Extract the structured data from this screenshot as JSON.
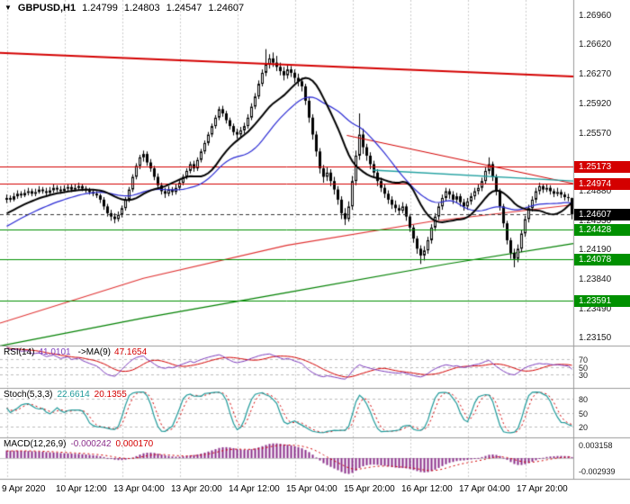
{
  "header": {
    "dropdown_glyph": "▼",
    "symbol_period": "GBPUSD,H1",
    "open": "1.24799",
    "high": "1.24803",
    "low": "1.24547",
    "close": "1.24607"
  },
  "colors": {
    "background": "#ffffff",
    "grid": "#cdcdcd",
    "separator": "#9a9a9a",
    "candle_outline": "#000000",
    "candle_bull": "#ffffff",
    "candle_bear": "#000000",
    "ma_black": "#000000",
    "ma_blue": "#2a2ad4",
    "ma_red_long": "#e03030",
    "ma_green_long": "#008000",
    "level_red": "#d40000",
    "level_green": "#009000",
    "trend_red": "#d40000",
    "teal_line": "#20a0a0",
    "badge_red": "#d40000",
    "badge_green": "#009000",
    "badge_black": "#000000",
    "current_price_line": "#333333",
    "rsi_line": "#7d3cbd",
    "rsi_ma": "#d40000",
    "stoch_k": "#1f9a9a",
    "stoch_d": "#d40000",
    "macd_hist": "#8b2f8b",
    "macd_signal": "#d40000",
    "text": "#1a1a1a"
  },
  "chart_data": {
    "type": "candlestick",
    "title": "GBPUSD,H1",
    "symbol": "GBPUSD",
    "timeframe": "H1",
    "price_range": {
      "min": 1.2315,
      "max": 1.2696
    },
    "candles": [
      [
        1.2478,
        1.2484,
        1.2474,
        1.248
      ],
      [
        1.248,
        1.2483,
        1.2475,
        1.2478
      ],
      [
        1.2478,
        1.2486,
        1.2476,
        1.2482
      ],
      [
        1.2482,
        1.2489,
        1.2479,
        1.2485
      ],
      [
        1.2485,
        1.2488,
        1.248,
        1.2483
      ],
      [
        1.2483,
        1.249,
        1.2481,
        1.2486
      ],
      [
        1.2486,
        1.2492,
        1.2483,
        1.2488
      ],
      [
        1.2488,
        1.2491,
        1.2482,
        1.2485
      ],
      [
        1.2485,
        1.2491,
        1.2482,
        1.2487
      ],
      [
        1.2487,
        1.2494,
        1.2485,
        1.249
      ],
      [
        1.249,
        1.2493,
        1.2485,
        1.2488
      ],
      [
        1.2488,
        1.2492,
        1.2483,
        1.2486
      ],
      [
        1.2486,
        1.2493,
        1.2484,
        1.2489
      ],
      [
        1.2489,
        1.2496,
        1.2486,
        1.2492
      ],
      [
        1.2492,
        1.2495,
        1.2487,
        1.249
      ],
      [
        1.249,
        1.2494,
        1.2485,
        1.2488
      ],
      [
        1.2488,
        1.2495,
        1.2486,
        1.2491
      ],
      [
        1.2491,
        1.2497,
        1.2488,
        1.2493
      ],
      [
        1.2493,
        1.2496,
        1.2487,
        1.249
      ],
      [
        1.249,
        1.2496,
        1.2488,
        1.2492
      ],
      [
        1.2492,
        1.2498,
        1.2489,
        1.2494
      ],
      [
        1.2494,
        1.2497,
        1.2488,
        1.2491
      ],
      [
        1.2491,
        1.2494,
        1.2486,
        1.2489
      ],
      [
        1.2489,
        1.2492,
        1.2484,
        1.2487
      ],
      [
        1.2487,
        1.249,
        1.2482,
        1.2485
      ],
      [
        1.2485,
        1.2488,
        1.248,
        1.2483
      ],
      [
        1.2483,
        1.2485,
        1.2474,
        1.2478
      ],
      [
        1.2478,
        1.2481,
        1.2466,
        1.247
      ],
      [
        1.247,
        1.2473,
        1.2458,
        1.2462
      ],
      [
        1.2462,
        1.2466,
        1.2453,
        1.2458
      ],
      [
        1.2458,
        1.2462,
        1.245,
        1.2455
      ],
      [
        1.2455,
        1.2464,
        1.2452,
        1.246
      ],
      [
        1.246,
        1.2471,
        1.2457,
        1.2468
      ],
      [
        1.2468,
        1.2481,
        1.2465,
        1.2478
      ],
      [
        1.2478,
        1.2493,
        1.2475,
        1.249
      ],
      [
        1.249,
        1.2508,
        1.2487,
        1.2505
      ],
      [
        1.2505,
        1.2521,
        1.2502,
        1.2518
      ],
      [
        1.2518,
        1.2531,
        1.2514,
        1.2528
      ],
      [
        1.2528,
        1.2536,
        1.2523,
        1.2532
      ],
      [
        1.2532,
        1.2535,
        1.2518,
        1.2522
      ],
      [
        1.2522,
        1.2526,
        1.2511,
        1.2515
      ],
      [
        1.2515,
        1.2518,
        1.2501,
        1.2505
      ],
      [
        1.2505,
        1.2509,
        1.2491,
        1.2495
      ],
      [
        1.2495,
        1.2498,
        1.2484,
        1.2488
      ],
      [
        1.2488,
        1.2492,
        1.248,
        1.2485
      ],
      [
        1.2485,
        1.2494,
        1.2482,
        1.249
      ],
      [
        1.249,
        1.2493,
        1.2483,
        1.2487
      ],
      [
        1.2487,
        1.2496,
        1.2484,
        1.2492
      ],
      [
        1.2492,
        1.2501,
        1.2489,
        1.2498
      ],
      [
        1.2498,
        1.2508,
        1.2495,
        1.2505
      ],
      [
        1.2505,
        1.2515,
        1.2502,
        1.2512
      ],
      [
        1.2512,
        1.2523,
        1.2509,
        1.252
      ],
      [
        1.252,
        1.2524,
        1.2511,
        1.2515
      ],
      [
        1.2515,
        1.2528,
        1.2512,
        1.2525
      ],
      [
        1.2525,
        1.2538,
        1.2522,
        1.2535
      ],
      [
        1.2535,
        1.2548,
        1.2532,
        1.2545
      ],
      [
        1.2545,
        1.2558,
        1.2542,
        1.2555
      ],
      [
        1.2555,
        1.2568,
        1.2552,
        1.2565
      ],
      [
        1.2565,
        1.2578,
        1.2562,
        1.2575
      ],
      [
        1.2575,
        1.2588,
        1.2572,
        1.2585
      ],
      [
        1.2585,
        1.2589,
        1.2576,
        1.258
      ],
      [
        1.258,
        1.2583,
        1.2568,
        1.2572
      ],
      [
        1.2572,
        1.2575,
        1.2561,
        1.2565
      ],
      [
        1.2565,
        1.2568,
        1.2554,
        1.2558
      ],
      [
        1.2558,
        1.2562,
        1.255,
        1.2555
      ],
      [
        1.2555,
        1.2564,
        1.2552,
        1.256
      ],
      [
        1.256,
        1.2569,
        1.2556,
        1.2565
      ],
      [
        1.2565,
        1.2579,
        1.2562,
        1.2575
      ],
      [
        1.2575,
        1.2592,
        1.2572,
        1.2588
      ],
      [
        1.2588,
        1.2604,
        1.2585,
        1.26
      ],
      [
        1.26,
        1.2619,
        1.2597,
        1.2615
      ],
      [
        1.2615,
        1.2632,
        1.2612,
        1.2628
      ],
      [
        1.2628,
        1.2656,
        1.2624,
        1.2638
      ],
      [
        1.2638,
        1.265,
        1.2633,
        1.2645
      ],
      [
        1.2645,
        1.2652,
        1.2635,
        1.264
      ],
      [
        1.264,
        1.2648,
        1.263,
        1.2635
      ],
      [
        1.2635,
        1.264,
        1.2625,
        1.263
      ],
      [
        1.263,
        1.2635,
        1.2619,
        1.2625
      ],
      [
        1.2625,
        1.2637,
        1.2621,
        1.2632
      ],
      [
        1.2632,
        1.2636,
        1.2623,
        1.2628
      ],
      [
        1.2628,
        1.2632,
        1.2616,
        1.2622
      ],
      [
        1.2622,
        1.2627,
        1.2612,
        1.2618
      ],
      [
        1.2618,
        1.2622,
        1.2606,
        1.2612
      ],
      [
        1.2612,
        1.2615,
        1.259,
        1.2595
      ],
      [
        1.2595,
        1.2599,
        1.2569,
        1.2575
      ],
      [
        1.2575,
        1.2579,
        1.2549,
        1.2555
      ],
      [
        1.2555,
        1.2559,
        1.2529,
        1.2535
      ],
      [
        1.2535,
        1.2539,
        1.2509,
        1.2515
      ],
      [
        1.2515,
        1.2519,
        1.2498,
        1.2505
      ],
      [
        1.2505,
        1.2516,
        1.25,
        1.251
      ],
      [
        1.251,
        1.2514,
        1.2494,
        1.25
      ],
      [
        1.25,
        1.2505,
        1.2484,
        1.249
      ],
      [
        1.249,
        1.2494,
        1.2472,
        1.2478
      ],
      [
        1.2478,
        1.2482,
        1.2455,
        1.2462
      ],
      [
        1.2462,
        1.2468,
        1.2448,
        1.2455
      ],
      [
        1.2455,
        1.2476,
        1.2452,
        1.247
      ],
      [
        1.247,
        1.2506,
        1.2466,
        1.25
      ],
      [
        1.25,
        1.2536,
        1.2495,
        1.253
      ],
      [
        1.253,
        1.258,
        1.2525,
        1.2555
      ],
      [
        1.2555,
        1.2562,
        1.2532,
        1.254
      ],
      [
        1.254,
        1.2544,
        1.2524,
        1.253
      ],
      [
        1.253,
        1.2534,
        1.2514,
        1.252
      ],
      [
        1.252,
        1.2524,
        1.2504,
        1.251
      ],
      [
        1.251,
        1.2514,
        1.2494,
        1.25
      ],
      [
        1.25,
        1.2504,
        1.2487,
        1.2492
      ],
      [
        1.2492,
        1.2496,
        1.248,
        1.2485
      ],
      [
        1.2485,
        1.2489,
        1.2473,
        1.2478
      ],
      [
        1.2478,
        1.2482,
        1.2467,
        1.2472
      ],
      [
        1.2472,
        1.2477,
        1.2463,
        1.2468
      ],
      [
        1.2468,
        1.2472,
        1.246,
        1.2465
      ],
      [
        1.2465,
        1.2475,
        1.2462,
        1.247
      ],
      [
        1.247,
        1.2473,
        1.2453,
        1.2458
      ],
      [
        1.2458,
        1.2461,
        1.244,
        1.2445
      ],
      [
        1.2445,
        1.2448,
        1.2427,
        1.2432
      ],
      [
        1.2432,
        1.2435,
        1.2414,
        1.242
      ],
      [
        1.242,
        1.2424,
        1.2402,
        1.2412
      ],
      [
        1.2412,
        1.2423,
        1.2406,
        1.2418
      ],
      [
        1.2418,
        1.2434,
        1.2414,
        1.243
      ],
      [
        1.243,
        1.2449,
        1.2426,
        1.2445
      ],
      [
        1.2445,
        1.2462,
        1.2441,
        1.2458
      ],
      [
        1.2458,
        1.2474,
        1.2454,
        1.247
      ],
      [
        1.247,
        1.2484,
        1.2466,
        1.248
      ],
      [
        1.248,
        1.2492,
        1.2476,
        1.2488
      ],
      [
        1.2488,
        1.2491,
        1.2479,
        1.2484
      ],
      [
        1.2484,
        1.2488,
        1.2473,
        1.2478
      ],
      [
        1.2478,
        1.2486,
        1.2474,
        1.2482
      ],
      [
        1.2482,
        1.2485,
        1.247,
        1.2475
      ],
      [
        1.2475,
        1.2479,
        1.2465,
        1.247
      ],
      [
        1.247,
        1.248,
        1.2466,
        1.2476
      ],
      [
        1.2476,
        1.2486,
        1.2472,
        1.2482
      ],
      [
        1.2482,
        1.2492,
        1.2478,
        1.2488
      ],
      [
        1.2488,
        1.2496,
        1.2484,
        1.2492
      ],
      [
        1.2492,
        1.2504,
        1.2488,
        1.25
      ],
      [
        1.25,
        1.2516,
        1.2496,
        1.2512
      ],
      [
        1.2512,
        1.2528,
        1.2508,
        1.252
      ],
      [
        1.252,
        1.2523,
        1.25,
        1.2505
      ],
      [
        1.2505,
        1.2508,
        1.2483,
        1.2488
      ],
      [
        1.2488,
        1.2491,
        1.2465,
        1.247
      ],
      [
        1.247,
        1.2473,
        1.2445,
        1.245
      ],
      [
        1.245,
        1.2453,
        1.2425,
        1.243
      ],
      [
        1.243,
        1.2433,
        1.2408,
        1.2415
      ],
      [
        1.2415,
        1.242,
        1.2398,
        1.2408
      ],
      [
        1.2408,
        1.2425,
        1.2404,
        1.242
      ],
      [
        1.242,
        1.2442,
        1.2416,
        1.2438
      ],
      [
        1.2438,
        1.2459,
        1.2434,
        1.2455
      ],
      [
        1.2455,
        1.2472,
        1.2451,
        1.2468
      ],
      [
        1.2468,
        1.2482,
        1.2464,
        1.2478
      ],
      [
        1.2478,
        1.2492,
        1.2474,
        1.2488
      ],
      [
        1.2488,
        1.2498,
        1.2484,
        1.2494
      ],
      [
        1.2494,
        1.2497,
        1.2486,
        1.249
      ],
      [
        1.249,
        1.2496,
        1.2487,
        1.2492
      ],
      [
        1.2492,
        1.2495,
        1.2484,
        1.2488
      ],
      [
        1.2488,
        1.2491,
        1.2481,
        1.2485
      ],
      [
        1.2485,
        1.2492,
        1.2482,
        1.2487
      ],
      [
        1.2487,
        1.249,
        1.248,
        1.2484
      ],
      [
        1.2484,
        1.2487,
        1.2477,
        1.2481
      ],
      [
        1.2481,
        1.2485,
        1.2476,
        1.24799
      ],
      [
        1.24799,
        1.24803,
        1.24547,
        1.24607
      ]
    ],
    "moving_averages": [
      {
        "name": "fast-ma-black",
        "period": 16,
        "color_key": "ma_black",
        "width": 2
      },
      {
        "name": "slow-ma-blue",
        "period": 28,
        "color_key": "ma_blue",
        "width": 1.2
      }
    ],
    "overlays": {
      "horizontal_lines": [
        {
          "price": 1.25173,
          "color_key": "level_red"
        },
        {
          "price": 1.24974,
          "color_key": "level_red"
        },
        {
          "price": 1.24428,
          "color_key": "level_green"
        },
        {
          "price": 1.24078,
          "color_key": "level_green"
        },
        {
          "price": 1.23591,
          "color_key": "level_green"
        }
      ],
      "trend_lines": [
        {
          "x1": 0.0,
          "p1": 1.26515,
          "x2": 1.0,
          "p2": 1.26235,
          "color_key": "trend_red",
          "width": 2
        },
        {
          "x1": 0.605,
          "p1": 1.2554,
          "x2": 1.0,
          "p2": 1.2497,
          "color_key": "trend_red",
          "width": 1
        },
        {
          "x1": 0.65,
          "p1": 1.2513,
          "x2": 1.0,
          "p2": 1.25,
          "color_key": "teal_line",
          "width": 1.4
        }
      ],
      "long_ma_polylines": [
        {
          "name": "long-ma-red",
          "color_key": "ma_red_long",
          "width": 1.2,
          "points": [
            [
              0,
              1.2332
            ],
            [
              0.25,
              1.2385
            ],
            [
              0.5,
              1.2424
            ],
            [
              0.75,
              1.2452
            ],
            [
              1,
              1.2472
            ]
          ]
        },
        {
          "name": "long-ma-green",
          "color_key": "ma_green_long",
          "width": 1.2,
          "points": [
            [
              0,
              1.2305
            ],
            [
              0.25,
              1.2338
            ],
            [
              0.5,
              1.2368
            ],
            [
              0.78,
              1.2402
            ],
            [
              1,
              1.2426
            ]
          ]
        }
      ],
      "current_price": 1.24607
    },
    "price_axis": {
      "plain_labels": [
        {
          "text": "1.26960",
          "price": 1.2696
        },
        {
          "text": "1.26620",
          "price": 1.2662
        },
        {
          "text": "1.26270",
          "price": 1.2627
        },
        {
          "text": "1.25920",
          "price": 1.2592
        },
        {
          "text": "1.25570",
          "price": 1.2557
        },
        {
          "text": "1.24880",
          "price": 1.2488
        },
        {
          "text": "1.24530",
          "price": 1.2453
        },
        {
          "text": "1.24190",
          "price": 1.2419
        },
        {
          "text": "1.23840",
          "price": 1.2384
        },
        {
          "text": "1.23490",
          "price": 1.2349
        },
        {
          "text": "1.23150",
          "price": 1.2315
        }
      ],
      "badges": [
        {
          "text": "1.25173",
          "price": 1.25173,
          "color": "red"
        },
        {
          "text": "1.24974",
          "price": 1.24974,
          "color": "red"
        },
        {
          "text": "1.24607",
          "price": 1.24607,
          "color": "black"
        },
        {
          "text": "1.24428",
          "price": 1.24428,
          "color": "green"
        },
        {
          "text": "1.24078",
          "price": 1.24078,
          "color": "green"
        },
        {
          "text": "1.23591",
          "price": 1.23591,
          "color": "green"
        }
      ]
    },
    "time_axis": {
      "ticks": [
        {
          "index": 0,
          "label": "9 Apr 2020"
        },
        {
          "index": 16,
          "label": "10 Apr 12:00"
        },
        {
          "index": 32,
          "label": "13 Apr 04:00"
        },
        {
          "index": 48,
          "label": "13 Apr 20:00"
        },
        {
          "index": 64,
          "label": "14 Apr 12:00"
        },
        {
          "index": 80,
          "label": "15 Apr 04:00"
        },
        {
          "index": 96,
          "label": "15 Apr 20:00"
        },
        {
          "index": 112,
          "label": "16 Apr 12:00"
        },
        {
          "index": 128,
          "label": "17 Apr 04:00"
        },
        {
          "index": 144,
          "label": "17 Apr 20:00"
        }
      ]
    },
    "indicators": {
      "rsi": {
        "name": "RSI(14)",
        "value": "41.0101",
        "ma_name": "->MA(9)",
        "ma_value": "47.1654",
        "period": 14,
        "ma_period": 9,
        "levels": [
          70,
          50,
          30
        ],
        "scale_labels": [
          "70",
          "50",
          "30"
        ]
      },
      "stoch": {
        "name": "Stoch(5,3,3)",
        "k_value": "22.6614",
        "d_value": "20.1355",
        "k_period": 5,
        "d_period": 3,
        "slowing": 3,
        "levels": [
          80,
          50,
          20
        ],
        "scale_labels": [
          "80",
          "50",
          "20"
        ]
      },
      "macd": {
        "name": "MACD(12,26,9)",
        "value": "-0.000242",
        "signal_value": "0.000170",
        "fast": 12,
        "slow": 26,
        "signal": 9,
        "scale_labels": [
          {
            "text": "0.003158",
            "pos": "top"
          },
          {
            "text": "-0.002939",
            "pos": "bottom"
          }
        ]
      }
    }
  }
}
